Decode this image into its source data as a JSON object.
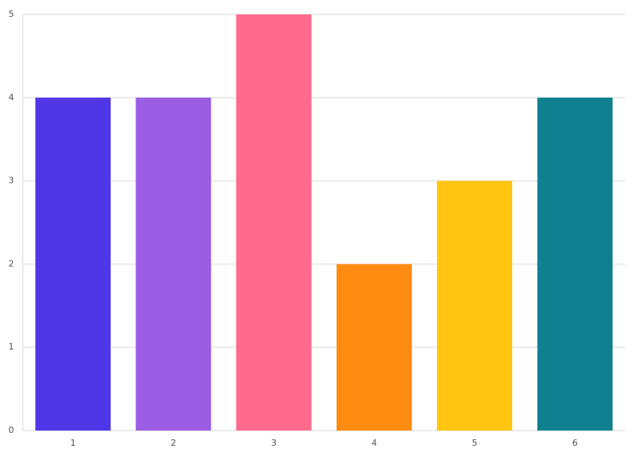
{
  "chart_data": {
    "type": "bar",
    "categories": [
      "1",
      "2",
      "3",
      "4",
      "5",
      "6"
    ],
    "values": [
      4,
      4,
      5,
      2,
      3,
      4
    ],
    "colors": [
      "#4f37e8",
      "#9b5de3",
      "#ff6b8c",
      "#ff8c10",
      "#ffc510",
      "#0e8090"
    ],
    "ylim": [
      0,
      5
    ],
    "yticks": [
      0,
      1,
      2,
      3,
      4,
      5
    ],
    "grid": true
  }
}
